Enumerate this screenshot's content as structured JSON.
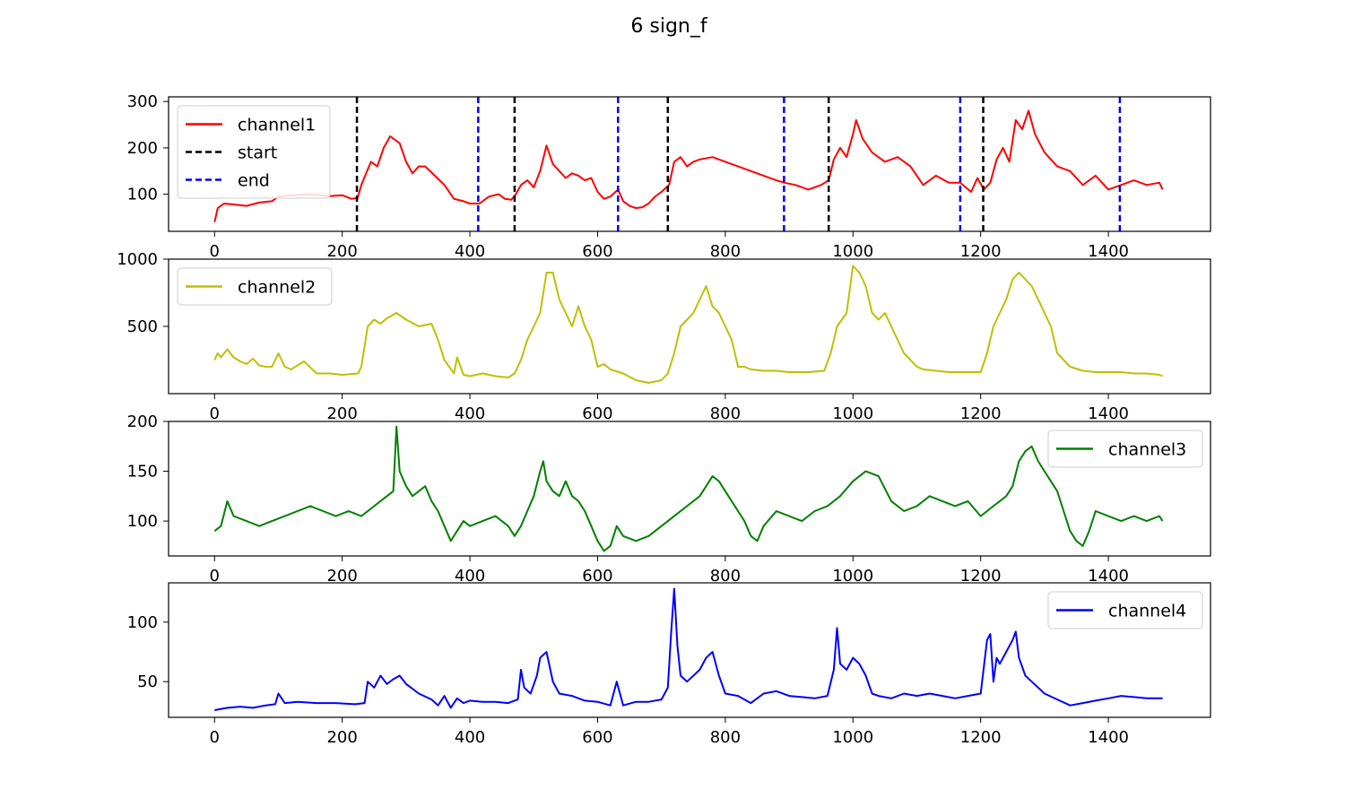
{
  "title": "6 sign_f",
  "colors": {
    "channel1": "#ff0000",
    "channel2": "#bfbf00",
    "channel3": "#008000",
    "channel4": "#0000ff",
    "start": "#000000",
    "end": "#0000ff"
  },
  "chart_data": [
    {
      "type": "line",
      "xlim": [
        -72,
        1560
      ],
      "ylim": [
        20,
        310
      ],
      "xticks": [
        0,
        200,
        400,
        600,
        800,
        1000,
        1200,
        1400
      ],
      "yticks": [
        100,
        200,
        300
      ],
      "legend": "top-left",
      "series": [
        {
          "name": "channel1",
          "color": "#ff0000",
          "x": [
            0,
            5,
            15,
            30,
            50,
            70,
            90,
            100,
            120,
            150,
            180,
            200,
            215,
            224,
            230,
            245,
            255,
            265,
            275,
            290,
            300,
            310,
            320,
            330,
            345,
            360,
            375,
            390,
            400,
            415,
            430,
            445,
            455,
            465,
            472,
            480,
            490,
            500,
            510,
            520,
            530,
            540,
            550,
            560,
            570,
            580,
            590,
            600,
            610,
            620,
            632,
            640,
            650,
            660,
            670,
            680,
            690,
            700,
            712,
            720,
            730,
            740,
            750,
            760,
            780,
            800,
            820,
            840,
            860,
            880,
            892,
            910,
            930,
            950,
            962,
            970,
            980,
            990,
            1000,
            1005,
            1015,
            1030,
            1050,
            1070,
            1090,
            1110,
            1130,
            1150,
            1168,
            1185,
            1195,
            1205,
            1215,
            1225,
            1235,
            1245,
            1255,
            1265,
            1275,
            1285,
            1300,
            1320,
            1340,
            1360,
            1380,
            1400,
            1420,
            1440,
            1460,
            1480,
            1485
          ],
          "values": [
            40,
            70,
            80,
            78,
            75,
            82,
            85,
            95,
            98,
            100,
            96,
            98,
            90,
            92,
            120,
            170,
            160,
            200,
            225,
            210,
            170,
            145,
            160,
            160,
            140,
            120,
            90,
            85,
            80,
            80,
            95,
            100,
            90,
            88,
            100,
            120,
            130,
            115,
            150,
            205,
            165,
            150,
            135,
            145,
            140,
            130,
            135,
            105,
            90,
            95,
            110,
            85,
            75,
            70,
            72,
            80,
            95,
            105,
            120,
            170,
            180,
            160,
            170,
            175,
            180,
            170,
            160,
            150,
            140,
            130,
            125,
            120,
            110,
            120,
            130,
            175,
            200,
            180,
            230,
            260,
            220,
            190,
            170,
            180,
            160,
            120,
            140,
            125,
            125,
            105,
            135,
            110,
            125,
            175,
            200,
            170,
            260,
            240,
            280,
            230,
            190,
            160,
            150,
            120,
            140,
            110,
            120,
            130,
            120,
            125,
            110
          ]
        },
        {
          "name": "start",
          "color": "#000000",
          "dashed": true,
          "x": [
            223,
            470,
            710,
            962,
            1204
          ]
        },
        {
          "name": "end",
          "color": "#0000ff",
          "dashed": true,
          "x": [
            413,
            632,
            892,
            1168,
            1418
          ]
        }
      ]
    },
    {
      "type": "line",
      "xlim": [
        -72,
        1560
      ],
      "ylim": [
        0,
        1000
      ],
      "xticks": [
        0,
        200,
        400,
        600,
        800,
        1000,
        1200,
        1400
      ],
      "yticks": [
        500,
        1000
      ],
      "legend": "top-left",
      "series": [
        {
          "name": "channel2",
          "color": "#bfbf00",
          "x": [
            0,
            5,
            10,
            20,
            30,
            40,
            50,
            60,
            70,
            80,
            90,
            100,
            110,
            120,
            140,
            160,
            180,
            200,
            225,
            230,
            240,
            250,
            260,
            270,
            285,
            300,
            320,
            340,
            350,
            360,
            375,
            380,
            390,
            400,
            420,
            440,
            460,
            470,
            480,
            490,
            500,
            510,
            520,
            530,
            540,
            550,
            560,
            570,
            580,
            590,
            600,
            610,
            620,
            640,
            660,
            680,
            700,
            710,
            720,
            730,
            740,
            750,
            760,
            770,
            780,
            790,
            800,
            810,
            820,
            830,
            840,
            860,
            880,
            900,
            930,
            955,
            965,
            975,
            990,
            1000,
            1010,
            1020,
            1030,
            1040,
            1050,
            1060,
            1070,
            1080,
            1090,
            1100,
            1110,
            1130,
            1150,
            1180,
            1200,
            1210,
            1220,
            1230,
            1240,
            1250,
            1260,
            1270,
            1280,
            1290,
            1300,
            1310,
            1320,
            1340,
            1360,
            1380,
            1400,
            1420,
            1440,
            1460,
            1480,
            1485
          ],
          "values": [
            250,
            300,
            270,
            330,
            270,
            240,
            220,
            260,
            210,
            200,
            200,
            300,
            200,
            180,
            240,
            150,
            150,
            140,
            150,
            200,
            500,
            550,
            520,
            560,
            600,
            550,
            500,
            520,
            400,
            250,
            150,
            270,
            140,
            130,
            150,
            130,
            120,
            150,
            250,
            400,
            500,
            600,
            900,
            900,
            700,
            600,
            500,
            650,
            500,
            400,
            200,
            220,
            180,
            150,
            100,
            80,
            100,
            150,
            300,
            500,
            550,
            600,
            700,
            800,
            650,
            600,
            500,
            400,
            200,
            200,
            180,
            170,
            170,
            160,
            160,
            170,
            300,
            500,
            600,
            950,
            900,
            800,
            600,
            550,
            600,
            500,
            400,
            300,
            250,
            200,
            180,
            170,
            160,
            160,
            160,
            300,
            500,
            600,
            700,
            850,
            900,
            850,
            800,
            700,
            600,
            500,
            300,
            200,
            170,
            160,
            160,
            160,
            150,
            150,
            140,
            130
          ]
        }
      ]
    },
    {
      "type": "line",
      "xlim": [
        -72,
        1560
      ],
      "ylim": [
        65,
        200
      ],
      "xticks": [
        0,
        200,
        400,
        600,
        800,
        1000,
        1200,
        1400
      ],
      "yticks": [
        100,
        150,
        200
      ],
      "legend": "top-right",
      "series": [
        {
          "name": "channel3",
          "color": "#008000",
          "x": [
            0,
            10,
            20,
            30,
            50,
            70,
            90,
            110,
            130,
            150,
            170,
            190,
            210,
            230,
            250,
            270,
            280,
            285,
            290,
            300,
            310,
            320,
            330,
            340,
            350,
            360,
            370,
            380,
            390,
            400,
            420,
            440,
            460,
            470,
            480,
            490,
            500,
            510,
            515,
            520,
            530,
            540,
            550,
            560,
            570,
            580,
            590,
            600,
            610,
            620,
            630,
            640,
            660,
            680,
            700,
            720,
            740,
            760,
            770,
            780,
            790,
            800,
            810,
            820,
            830,
            840,
            850,
            860,
            880,
            900,
            920,
            940,
            960,
            980,
            1000,
            1020,
            1040,
            1060,
            1080,
            1100,
            1120,
            1140,
            1160,
            1180,
            1200,
            1220,
            1240,
            1250,
            1260,
            1270,
            1280,
            1290,
            1300,
            1310,
            1320,
            1330,
            1340,
            1350,
            1360,
            1370,
            1380,
            1400,
            1420,
            1440,
            1460,
            1480,
            1485
          ],
          "values": [
            90,
            95,
            120,
            105,
            100,
            95,
            100,
            105,
            110,
            115,
            110,
            105,
            110,
            105,
            115,
            125,
            130,
            195,
            150,
            135,
            125,
            130,
            135,
            120,
            110,
            95,
            80,
            90,
            100,
            95,
            100,
            105,
            95,
            85,
            95,
            110,
            125,
            150,
            160,
            140,
            130,
            125,
            140,
            125,
            120,
            110,
            95,
            80,
            70,
            75,
            95,
            85,
            80,
            85,
            95,
            105,
            115,
            125,
            135,
            145,
            140,
            130,
            120,
            110,
            100,
            85,
            80,
            95,
            110,
            105,
            100,
            110,
            115,
            125,
            140,
            150,
            145,
            120,
            110,
            115,
            125,
            120,
            115,
            120,
            105,
            115,
            125,
            135,
            160,
            170,
            175,
            160,
            150,
            140,
            130,
            110,
            90,
            80,
            75,
            90,
            110,
            105,
            100,
            105,
            100,
            105,
            100
          ]
        }
      ]
    },
    {
      "type": "line",
      "xlim": [
        -72,
        1560
      ],
      "ylim": [
        20,
        133
      ],
      "xticks": [
        0,
        200,
        400,
        600,
        800,
        1000,
        1200,
        1400
      ],
      "yticks": [
        50,
        100
      ],
      "legend": "top-right",
      "series": [
        {
          "name": "channel4",
          "color": "#0000ff",
          "x": [
            0,
            20,
            40,
            60,
            80,
            95,
            100,
            110,
            130,
            160,
            190,
            220,
            235,
            240,
            250,
            260,
            270,
            280,
            290,
            300,
            320,
            340,
            350,
            360,
            370,
            380,
            390,
            400,
            420,
            440,
            460,
            475,
            480,
            485,
            495,
            505,
            510,
            520,
            530,
            540,
            560,
            580,
            600,
            620,
            630,
            640,
            660,
            680,
            700,
            710,
            715,
            720,
            725,
            730,
            740,
            760,
            770,
            780,
            790,
            800,
            820,
            840,
            860,
            880,
            900,
            920,
            940,
            960,
            970,
            975,
            980,
            990,
            1000,
            1010,
            1020,
            1030,
            1040,
            1060,
            1080,
            1100,
            1120,
            1140,
            1160,
            1180,
            1200,
            1210,
            1215,
            1220,
            1225,
            1230,
            1240,
            1250,
            1255,
            1260,
            1270,
            1280,
            1290,
            1300,
            1320,
            1340,
            1360,
            1380,
            1400,
            1420,
            1440,
            1460,
            1480,
            1485
          ],
          "values": [
            26,
            28,
            29,
            28,
            30,
            31,
            40,
            32,
            33,
            32,
            32,
            31,
            32,
            50,
            45,
            55,
            48,
            52,
            55,
            48,
            40,
            35,
            30,
            38,
            28,
            36,
            32,
            34,
            33,
            33,
            32,
            35,
            60,
            45,
            40,
            55,
            70,
            75,
            50,
            40,
            38,
            34,
            33,
            30,
            50,
            30,
            33,
            33,
            35,
            45,
            90,
            128,
            80,
            55,
            50,
            60,
            70,
            75,
            55,
            40,
            38,
            32,
            40,
            42,
            38,
            37,
            36,
            38,
            60,
            95,
            65,
            60,
            70,
            65,
            55,
            40,
            38,
            36,
            40,
            38,
            40,
            38,
            36,
            38,
            40,
            85,
            90,
            50,
            70,
            65,
            75,
            85,
            92,
            70,
            55,
            50,
            45,
            40,
            35,
            30,
            32,
            34,
            36,
            38,
            37,
            36,
            36,
            36
          ]
        }
      ]
    }
  ]
}
